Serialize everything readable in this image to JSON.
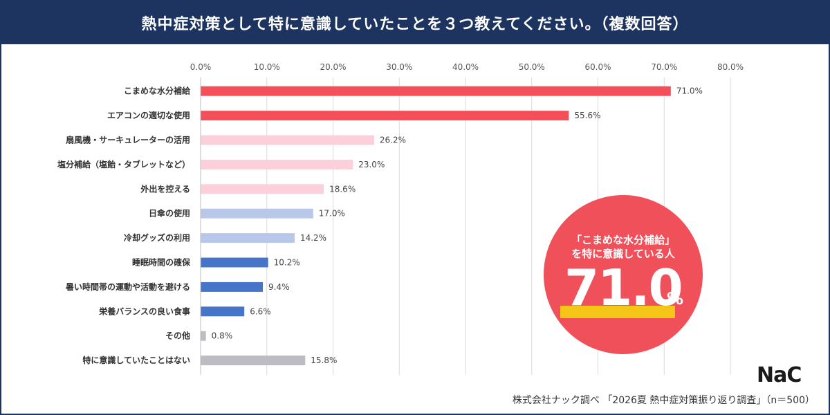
{
  "header": {
    "title": "熱中症対策として特に意識していたことを３つ教えてください。（複数回答）"
  },
  "chart_data": {
    "type": "bar",
    "orientation": "horizontal",
    "categories": [
      "こまめな水分補給",
      "エアコンの適切な使用",
      "扇風機・サーキュレーターの活用",
      "塩分補給（塩飴・タブレットなど）",
      "外出を控える",
      "日傘の使用",
      "冷却グッズの利用",
      "睡眠時間の確保",
      "暑い時間帯の運動や活動を避ける",
      "栄養バランスの良い食事",
      "その他",
      "特に意識していたことはない"
    ],
    "values": [
      71.0,
      55.6,
      26.2,
      23.0,
      18.6,
      17.0,
      14.2,
      10.2,
      9.4,
      6.6,
      0.8,
      15.8
    ],
    "value_labels": [
      "71.0%",
      "55.6%",
      "26.2%",
      "23.0%",
      "18.6%",
      "17.0%",
      "14.2%",
      "10.2%",
      "9.4%",
      "6.6%",
      "0.8%",
      "15.8%"
    ],
    "colors": [
      "#f5505a",
      "#f5505a",
      "#fcd0da",
      "#fcd0da",
      "#fcd0da",
      "#b9c8ea",
      "#b9c8ea",
      "#4674c8",
      "#4674c8",
      "#4674c8",
      "#bdbcc2",
      "#bdbcc2"
    ],
    "xlim": [
      0,
      80
    ],
    "x_ticks": [
      0,
      10,
      20,
      30,
      40,
      50,
      60,
      70,
      80
    ],
    "x_tick_labels": [
      "0.0%",
      "10.0%",
      "20.0%",
      "30.0%",
      "40.0%",
      "50.0%",
      "60.0%",
      "70.0%",
      "80.0%"
    ],
    "grid": true
  },
  "highlight": {
    "line1": "「こまめな水分補給」",
    "line2": "を特に意識している人",
    "number": "71.0",
    "unit": "%",
    "color": "#f0505a",
    "underline_color": "#f5c518"
  },
  "logo": {
    "text": "NaC"
  },
  "footer": {
    "source": "株式会社ナック調べ 「2026夏 熱中症対策振り返り調査」（n＝500）"
  }
}
